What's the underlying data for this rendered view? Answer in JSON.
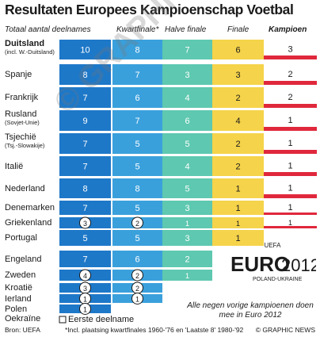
{
  "title": "Resultaten Europees Kampioenschap Voetbal",
  "headers": {
    "participations": "Totaal aantal deelnames",
    "quarterfinal": "Kwartfinale*",
    "halffinal": "Halve finale",
    "final": "Finale",
    "champion": "Kampioen"
  },
  "legend_first": "Eerste deelname",
  "source": "Bron: UEFA",
  "footnote": "*Incl. plaatsing kwartfinales 1960-'76 en 'Laatste 8' 1980-'92",
  "credit": "© GRAPHIC NEWS",
  "note": "Alle negen vorige kampioenen doen mee in Euro 2012",
  "logo": {
    "top": "UEFA",
    "main": "EURO",
    "year": "2012",
    "sub": "POLAND-UKRAINE"
  },
  "watermark": "© GRAPHIC NEWS",
  "colors": {
    "participations": "#1e78c8",
    "quarterfinal": "#3aa0dc",
    "halffinal": "#5ec8b0",
    "final": "#f5d34a",
    "champion": "#e0283c"
  },
  "chart_data": {
    "type": "table",
    "columns": [
      "Totaal aantal deelnames",
      "Kwartfinale*",
      "Halve finale",
      "Finale",
      "Kampioen"
    ],
    "rows": [
      {
        "country": "Duitsland",
        "note": "(incl. W.-Duitsland)",
        "bold": true,
        "values": [
          10,
          8,
          7,
          6,
          3
        ],
        "first": false
      },
      {
        "country": "Spanje",
        "note": "",
        "bold": false,
        "values": [
          8,
          7,
          3,
          3,
          2
        ],
        "first": false
      },
      {
        "country": "Frankrijk",
        "note": "",
        "bold": false,
        "values": [
          7,
          6,
          4,
          2,
          2
        ],
        "first": false
      },
      {
        "country": "Rusland",
        "note": "(Sovjet-Unie)",
        "bold": false,
        "values": [
          9,
          7,
          6,
          4,
          1
        ],
        "first": false
      },
      {
        "country": "Tsjechië",
        "note": "(Tsj.-Slowakije)",
        "bold": false,
        "values": [
          7,
          5,
          5,
          2,
          1
        ],
        "first": false
      },
      {
        "country": "Italië",
        "note": "",
        "bold": false,
        "values": [
          7,
          5,
          4,
          2,
          1
        ],
        "first": false
      },
      {
        "country": "Nederland",
        "note": "",
        "bold": false,
        "values": [
          8,
          8,
          5,
          1,
          1
        ],
        "first": false
      },
      {
        "country": "Denemarken",
        "note": "",
        "bold": false,
        "values": [
          7,
          5,
          3,
          1,
          1
        ],
        "first": false
      },
      {
        "country": "Griekenland",
        "note": "",
        "bold": false,
        "values": [
          3,
          2,
          1,
          1,
          1
        ],
        "first": false
      },
      {
        "country": "Portugal",
        "note": "",
        "bold": false,
        "values": [
          5,
          5,
          3,
          1,
          0
        ],
        "first": false
      },
      {
        "country": "Engeland",
        "note": "",
        "bold": false,
        "values": [
          7,
          6,
          2,
          0,
          0
        ],
        "first": false
      },
      {
        "country": "Zweden",
        "note": "",
        "bold": false,
        "values": [
          4,
          2,
          1,
          0,
          0
        ],
        "first": false
      },
      {
        "country": "Kroatië",
        "note": "",
        "bold": false,
        "values": [
          3,
          2,
          0,
          0,
          0
        ],
        "first": false
      },
      {
        "country": "Ierland",
        "note": "",
        "bold": false,
        "values": [
          1,
          1,
          0,
          0,
          0
        ],
        "first": false
      },
      {
        "country": "Polen",
        "note": "",
        "bold": false,
        "values": [
          1,
          0,
          0,
          0,
          0
        ],
        "first": false
      },
      {
        "country": "Oekraïne",
        "note": "",
        "bold": false,
        "values": [
          0,
          0,
          0,
          0,
          0
        ],
        "first": true
      }
    ],
    "circled": {
      "Griekenland": [
        0,
        1
      ],
      "Zweden": [
        0,
        1
      ],
      "Kroatië": [
        0,
        1
      ],
      "Ierland": [
        0,
        1
      ],
      "Polen": [
        0
      ]
    }
  }
}
